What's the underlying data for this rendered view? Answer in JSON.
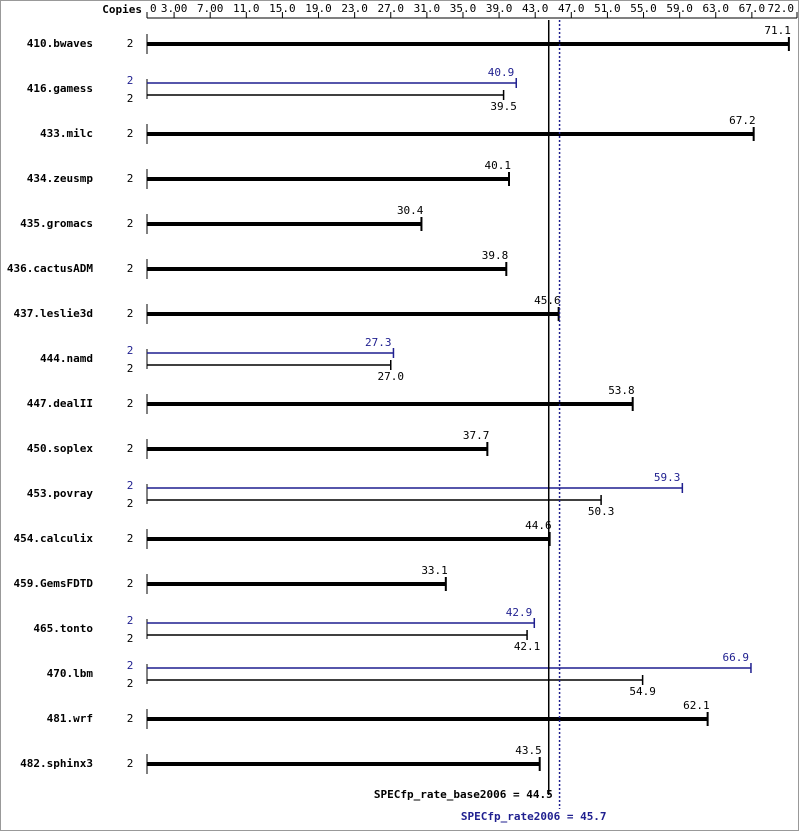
{
  "chart_data": {
    "type": "bar",
    "copies_header": "Copies",
    "categories": [
      "410.bwaves",
      "416.gamess",
      "433.milc",
      "434.zeusmp",
      "435.gromacs",
      "436.cactusADM",
      "437.leslie3d",
      "444.namd",
      "447.dealII",
      "450.soplex",
      "453.povray",
      "454.calculix",
      "459.GemsFDTD",
      "465.tonto",
      "470.lbm",
      "481.wrf",
      "482.sphinx3"
    ],
    "series": [
      {
        "color": "#000000",
        "copies": [
          2,
          2,
          2,
          2,
          2,
          2,
          2,
          2,
          2,
          2,
          2,
          2,
          2,
          2,
          2,
          2,
          2
        ],
        "values": [
          71.1,
          39.5,
          67.2,
          40.1,
          30.4,
          39.8,
          45.6,
          27.0,
          53.8,
          37.7,
          50.3,
          44.6,
          33.1,
          42.1,
          54.9,
          62.1,
          43.5
        ],
        "value_labels": [
          "71.1",
          "39.5",
          "67.2",
          "40.1",
          "30.4",
          "39.8",
          "45.6",
          "27.0",
          "53.8",
          "37.7",
          "50.3",
          "44.6",
          "33.1",
          "42.1",
          "54.9",
          "62.1",
          "43.5"
        ]
      },
      {
        "color": "#1f1f8f",
        "copies": [
          null,
          2,
          null,
          null,
          null,
          null,
          null,
          2,
          null,
          null,
          2,
          null,
          null,
          2,
          2,
          null,
          null
        ],
        "values": [
          null,
          40.9,
          null,
          null,
          null,
          null,
          null,
          27.3,
          null,
          null,
          59.3,
          null,
          null,
          42.9,
          66.9,
          null,
          null
        ]
      }
    ],
    "xlim": [
      0,
      72
    ],
    "xticks": [
      0,
      {
        "value": 3,
        "label": "3.00"
      },
      {
        "value": 7,
        "label": "7.00"
      },
      {
        "value": 11,
        "label": "11.0"
      },
      {
        "value": 15,
        "label": "15.0"
      },
      {
        "value": 19,
        "label": "19.0"
      },
      {
        "value": 23,
        "label": "23.0"
      },
      {
        "value": 27,
        "label": "27.0"
      },
      {
        "value": 31,
        "label": "31.0"
      },
      {
        "value": 35,
        "label": "35.0"
      },
      {
        "value": 39,
        "label": "39.0"
      },
      {
        "value": 43,
        "label": "43.0"
      },
      {
        "value": 47,
        "label": "47.0"
      },
      {
        "value": 51,
        "label": "51.0"
      },
      {
        "value": 55,
        "label": "55.0"
      },
      {
        "value": 59,
        "label": "59.0"
      },
      {
        "value": 63,
        "label": "63.0"
      },
      {
        "value": 67,
        "label": "67.0"
      },
      {
        "value": 72,
        "label": "72.0"
      }
    ],
    "reference_lines": [
      {
        "label": "SPECfp_rate_base2006 = 44.5",
        "value": 44.5,
        "color": "#000000",
        "style": "solid"
      },
      {
        "label": "SPECfp_rate2006 = 45.7",
        "value": 45.7,
        "color": "#1f1f8f",
        "style": "dotted"
      }
    ]
  }
}
